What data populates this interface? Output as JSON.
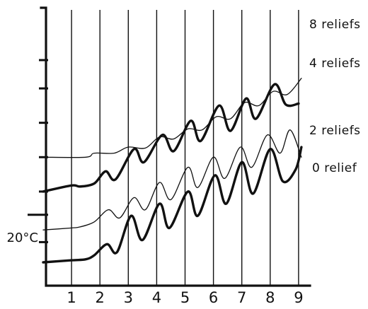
{
  "chart_data": {
    "type": "line",
    "xlabel": "",
    "ylabel": "",
    "x_ticks": [
      "1",
      "2",
      "3",
      "4",
      "5",
      "6",
      "7",
      "8",
      "9"
    ],
    "xlim": [
      0,
      9
    ],
    "ylim": [
      0,
      10
    ],
    "y_marker_label": "20°C",
    "y_marker_value": 2.35,
    "y_ticks": [
      1.0,
      2.35,
      3.5,
      5.2,
      6.9,
      8.6,
      10.0
    ],
    "grid": "vertical",
    "series": [
      {
        "name": "8 reliefs",
        "weight": "thin",
        "points": [
          [
            0,
            5.2
          ],
          [
            1.5,
            5.2
          ],
          [
            1.8,
            5.4
          ],
          [
            2.5,
            5.4
          ],
          [
            3.0,
            5.7
          ],
          [
            3.6,
            5.65
          ],
          [
            4.1,
            6.2
          ],
          [
            4.6,
            6.1
          ],
          [
            5.1,
            6.6
          ],
          [
            5.6,
            6.55
          ],
          [
            6.1,
            7.2
          ],
          [
            6.6,
            7.1
          ],
          [
            7.1,
            7.9
          ],
          [
            7.6,
            7.75
          ],
          [
            8.1,
            8.45
          ],
          [
            8.6,
            8.3
          ],
          [
            9.1,
            9.1
          ]
        ]
      },
      {
        "name": "4 reliefs",
        "weight": "bold",
        "points": [
          [
            0,
            3.5
          ],
          [
            1.0,
            3.8
          ],
          [
            1.3,
            3.75
          ],
          [
            1.8,
            3.9
          ],
          [
            2.2,
            4.5
          ],
          [
            2.55,
            4.1
          ],
          [
            3.2,
            5.6
          ],
          [
            3.55,
            4.95
          ],
          [
            4.2,
            6.3
          ],
          [
            4.6,
            5.5
          ],
          [
            5.2,
            7.0
          ],
          [
            5.55,
            6.0
          ],
          [
            6.2,
            7.75
          ],
          [
            6.6,
            6.5
          ],
          [
            7.15,
            8.1
          ],
          [
            7.5,
            7.1
          ],
          [
            8.15,
            8.8
          ],
          [
            8.55,
            7.8
          ],
          [
            9.0,
            7.85
          ]
        ]
      },
      {
        "name": "2 reliefs",
        "weight": "thin",
        "points": [
          [
            0,
            1.6
          ],
          [
            1.0,
            1.7
          ],
          [
            1.3,
            1.75
          ],
          [
            1.8,
            2.0
          ],
          [
            2.3,
            2.6
          ],
          [
            2.7,
            2.2
          ],
          [
            3.2,
            3.2
          ],
          [
            3.6,
            2.6
          ],
          [
            4.1,
            3.95
          ],
          [
            4.5,
            3.1
          ],
          [
            5.1,
            4.7
          ],
          [
            5.45,
            3.7
          ],
          [
            6.0,
            5.2
          ],
          [
            6.4,
            4.15
          ],
          [
            6.95,
            5.7
          ],
          [
            7.35,
            4.7
          ],
          [
            7.9,
            6.3
          ],
          [
            8.35,
            5.4
          ],
          [
            8.7,
            6.55
          ],
          [
            9.1,
            5.2
          ]
        ]
      },
      {
        "name": "0 relief",
        "weight": "bold",
        "points": [
          [
            0,
            0.0
          ],
          [
            1.0,
            0.1
          ],
          [
            1.5,
            0.15
          ],
          [
            1.8,
            0.35
          ],
          [
            2.25,
            0.9
          ],
          [
            2.6,
            0.5
          ],
          [
            3.1,
            2.3
          ],
          [
            3.5,
            1.1
          ],
          [
            4.1,
            2.9
          ],
          [
            4.45,
            1.7
          ],
          [
            5.1,
            3.5
          ],
          [
            5.45,
            2.3
          ],
          [
            6.05,
            4.3
          ],
          [
            6.45,
            2.9
          ],
          [
            7.0,
            4.95
          ],
          [
            7.4,
            3.4
          ],
          [
            8.0,
            5.6
          ],
          [
            8.45,
            4.0
          ],
          [
            8.9,
            4.6
          ],
          [
            9.1,
            5.7
          ]
        ]
      }
    ]
  }
}
